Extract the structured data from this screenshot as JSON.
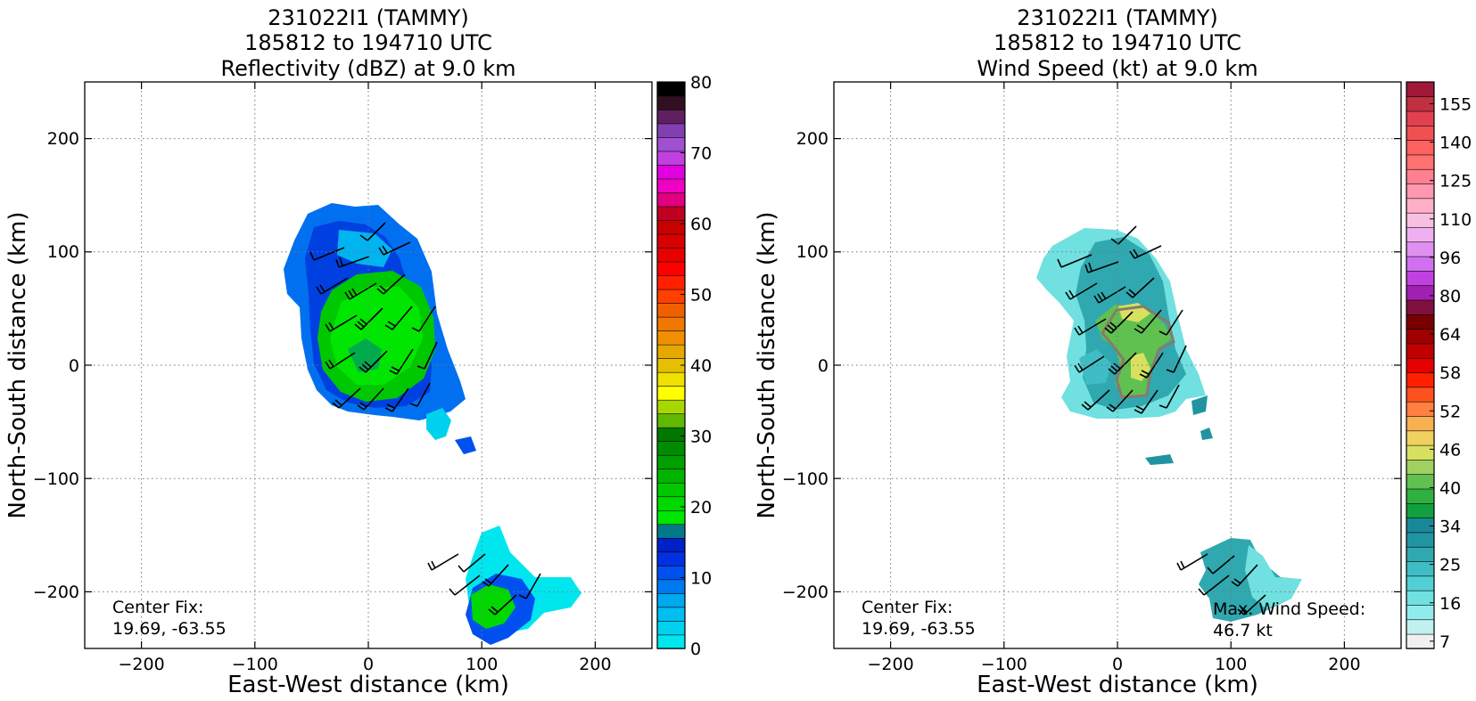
{
  "chart_data": [
    {
      "type": "heatmap",
      "title_lines": [
        "231022I1 (TAMMY)",
        "185812 to 194710 UTC",
        "Reflectivity (dBZ) at 9.0 km"
      ],
      "xlabel": "East-West distance (km)",
      "ylabel": "North-South distance (km)",
      "xlim": [
        -250,
        250
      ],
      "ylim": [
        -250,
        250
      ],
      "xticks": [
        "−200",
        "−100",
        "0",
        "100",
        "200"
      ],
      "yticks": [
        "200",
        "100",
        "0",
        "−100",
        "−200"
      ],
      "grid": true,
      "annotation_lines": [
        "Center Fix:",
        "19.69, -63.55"
      ],
      "colorbar": {
        "range": [
          0,
          80
        ],
        "ticks": [
          "0",
          "10",
          "20",
          "30",
          "40",
          "50",
          "60",
          "70",
          "80"
        ],
        "colors": [
          "#00e6ee",
          "#00d2ee",
          "#00bff0",
          "#00a8f0",
          "#0078f0",
          "#0050f0",
          "#0030e0",
          "#0020c8",
          "#007a8a",
          "#00e600",
          "#00d800",
          "#00c800",
          "#00b400",
          "#00a000",
          "#008c00",
          "#007800",
          "#60b800",
          "#a8d800",
          "#ffff00",
          "#f0e000",
          "#e6c000",
          "#e6a800",
          "#f09000",
          "#f07800",
          "#f06000",
          "#ff4000",
          "#ff2000",
          "#ff0000",
          "#e60000",
          "#d80000",
          "#c80000",
          "#c00020",
          "#e00080",
          "#f000c0",
          "#e000e0",
          "#c040e0",
          "#a050d0",
          "#8040b0",
          "#602060",
          "#301020",
          "#000000"
        ]
      },
      "regions": [
        {
          "name": "Storm echoes centred near (10, 40) km: blue 5–15 dBZ envelope with green 20–30 dBZ core"
        },
        {
          "name": "Southern echo cluster near (120, -200) km"
        }
      ]
    },
    {
      "type": "heatmap",
      "title_lines": [
        "231022I1 (TAMMY)",
        "185812 to 194710 UTC",
        "Wind Speed (kt) at 9.0 km"
      ],
      "xlabel": "East-West distance (km)",
      "ylabel": "North-South distance (km)",
      "xlim": [
        -250,
        250
      ],
      "ylim": [
        -250,
        250
      ],
      "xticks": [
        "−200",
        "−100",
        "0",
        "100",
        "200"
      ],
      "yticks": [
        "200",
        "100",
        "0",
        "−100",
        "−200"
      ],
      "grid": true,
      "annotation_lines": [
        "Center Fix:",
        "19.69, -63.55"
      ],
      "max_wind_lines": [
        "Max. Wind Speed:",
        "46.7 kt"
      ],
      "colorbar": {
        "ticks": [
          "7",
          "16",
          "25",
          "34",
          "40",
          "46",
          "52",
          "58",
          "64",
          "80",
          "96",
          "110",
          "125",
          "140",
          "155"
        ],
        "colors": [
          "#f0f0f0",
          "#c0f0f0",
          "#90ecec",
          "#70e0e0",
          "#50d0d4",
          "#40bcc4",
          "#30a8b0",
          "#2094a0",
          "#188898",
          "#10a040",
          "#30b040",
          "#60c050",
          "#a0d060",
          "#d8e060",
          "#f0d060",
          "#f8b050",
          "#ff8040",
          "#ff5020",
          "#ff2000",
          "#e60000",
          "#c00000",
          "#a00000",
          "#780000",
          "#801040",
          "#a020b0",
          "#c040e0",
          "#d070f0",
          "#e090f0",
          "#f0b0f0",
          "#f8c0e0",
          "#ffb0c8",
          "#ff98b0",
          "#ff8090",
          "#ff7070",
          "#ff6060",
          "#f05050",
          "#e04050",
          "#c03040",
          "#a01838"
        ]
      },
      "regions": [
        {
          "name": "Wind field cyan 16–25 kt with yellow-green 34–46 kt pockets near (20, 20) km"
        },
        {
          "name": "Southern wind area near (120, -190) km"
        }
      ]
    }
  ]
}
